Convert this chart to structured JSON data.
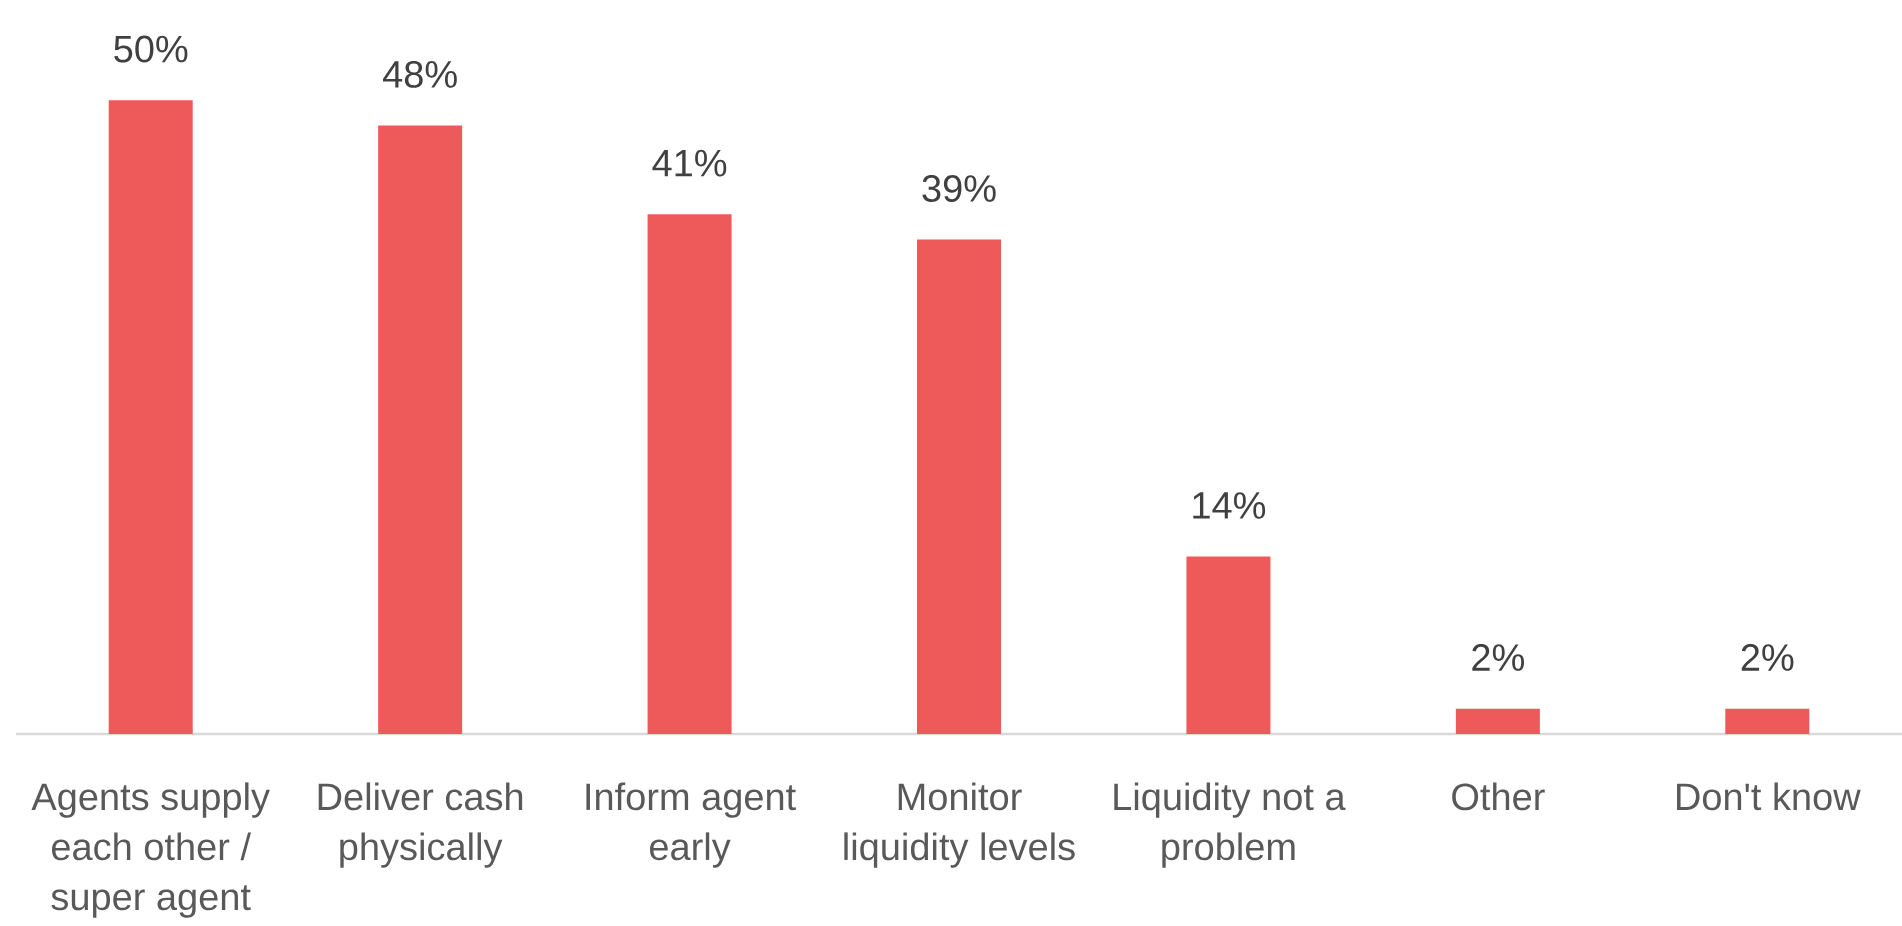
{
  "chart_data": {
    "type": "bar",
    "categories": [
      "Agents supply each other / super agent",
      "Deliver cash physically",
      "Inform agent early",
      "Monitor liquidity levels",
      "Liquidity not a problem",
      "Other",
      "Don't know"
    ],
    "values": [
      50,
      48,
      41,
      39,
      14,
      2,
      2
    ],
    "value_labels": [
      "50%",
      "48%",
      "41%",
      "39%",
      "14%",
      "2%",
      "2%"
    ],
    "color": "#ee5a5a"
  }
}
